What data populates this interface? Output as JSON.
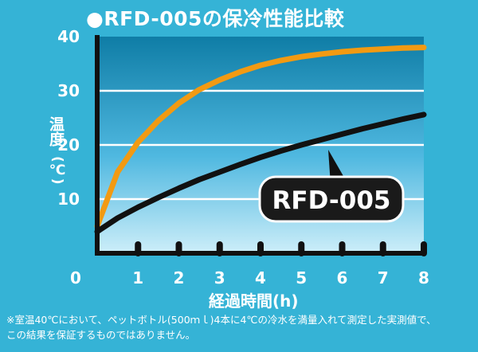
{
  "chart_data": {
    "type": "line",
    "title": "●RFD-005の保冷性能比較",
    "ylabel": "温度",
    "ylabel_unit": "(℃)",
    "xlabel": "経過時間(h)",
    "x_ticks": [
      0,
      1,
      2,
      3,
      4,
      5,
      6,
      7,
      8
    ],
    "y_ticks": [
      10,
      20,
      30,
      40
    ],
    "xlim": [
      0,
      8
    ],
    "ylim": [
      0,
      40
    ],
    "grid": true,
    "series": [
      {
        "name": "",
        "color": "#f29a12",
        "x": [
          0,
          0.5,
          1,
          1.5,
          2,
          2.5,
          3,
          3.5,
          4,
          4.5,
          5,
          5.5,
          6,
          6.5,
          7,
          7.5,
          8
        ],
        "y": [
          5,
          15,
          20.5,
          24.5,
          27.7,
          30.2,
          32,
          33.5,
          34.7,
          35.6,
          36.3,
          36.8,
          37.2,
          37.5,
          37.7,
          37.9,
          38
        ]
      },
      {
        "name": "RFD-005",
        "color": "#111111",
        "x": [
          0,
          0.5,
          1,
          1.5,
          2,
          2.5,
          3,
          3.5,
          4,
          4.5,
          5,
          5.5,
          6,
          6.5,
          7,
          7.5,
          8
        ],
        "y": [
          4,
          6.5,
          8.5,
          10.3,
          12,
          13.6,
          15,
          16.4,
          17.7,
          18.9,
          20,
          21,
          22,
          23,
          23.9,
          24.8,
          25.6
        ]
      }
    ],
    "callout": "RFD-005"
  },
  "colors": {
    "background": "#35b3d6",
    "plot_gradient_top": "#0f7da6",
    "plot_gradient_bottom": "#cdeef9",
    "axis": "#111111",
    "text": "#ffffff"
  },
  "note_lines": [
    "※室温40℃において、ペットボトル(500ｍｌ)4本に4℃の冷水を満量入れて測定した実測値で、",
    "この結果を保証するものではありません。"
  ]
}
